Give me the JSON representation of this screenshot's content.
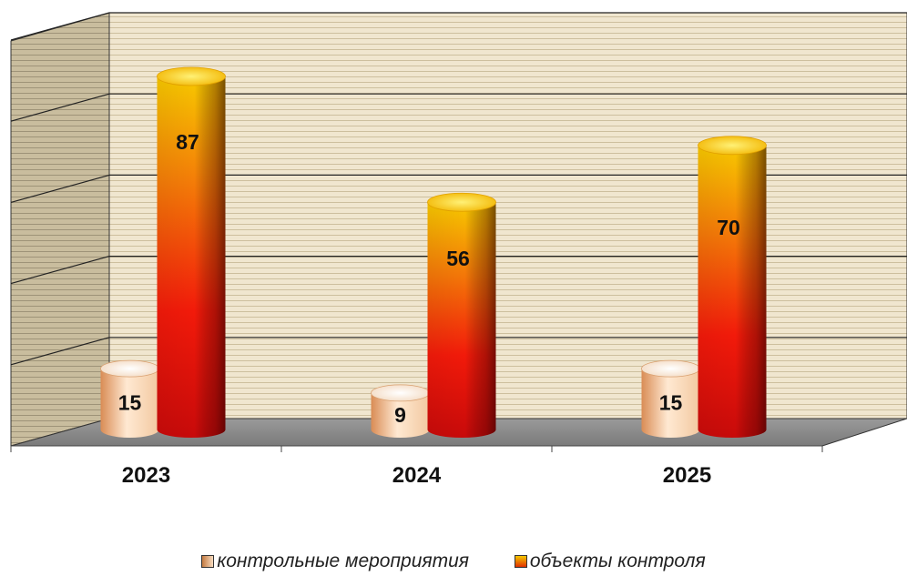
{
  "chart_data": {
    "type": "bar",
    "categories": [
      "2023",
      "2024",
      "2025"
    ],
    "series": [
      {
        "name": "контрольные мероприятия",
        "values": [
          15,
          9,
          15
        ],
        "color": "#e8a878"
      },
      {
        "name": "объекты контроля",
        "values": [
          87,
          56,
          70
        ],
        "color": "#e83a10"
      }
    ],
    "ylim": [
      0,
      100
    ],
    "grid": true,
    "gridlines": [
      20,
      40,
      60,
      80,
      100
    ],
    "legend_position": "bottom",
    "style": "3d-cylinder"
  }
}
